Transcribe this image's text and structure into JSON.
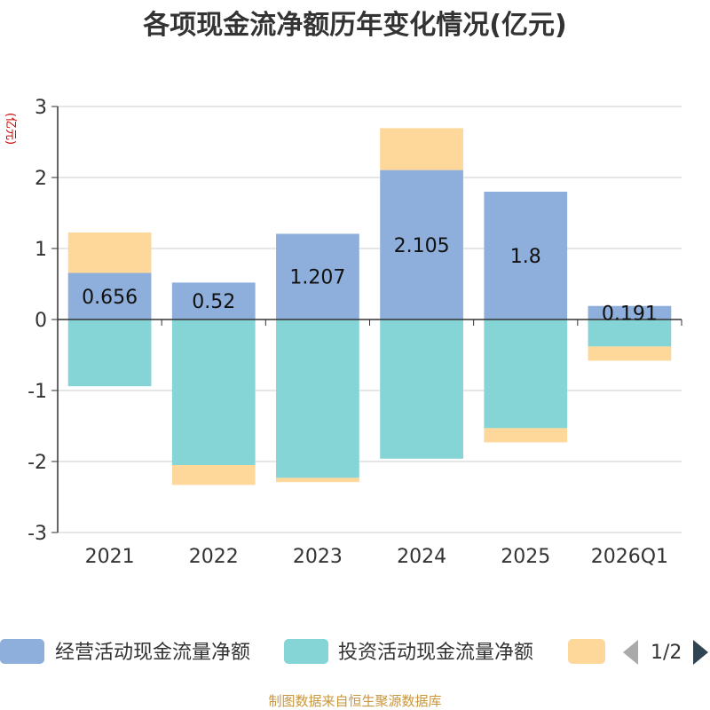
{
  "title": "各项现金流净额历年变化情况(亿元)",
  "unit": "(亿元)",
  "source": "制图数据来自恒生聚源数据库",
  "legend": {
    "items": [
      {
        "label": "经营活动现金流量净额",
        "color": "#8eaedb"
      },
      {
        "label": "投资活动现金流量净额",
        "color": "#85d4d6"
      },
      {
        "label": "",
        "color": "#fdd89a"
      }
    ],
    "page": "1/2"
  },
  "chart_data": {
    "type": "bar",
    "stacked": true,
    "categories": [
      "2021",
      "2022",
      "2023",
      "2024",
      "2025",
      "2026Q1"
    ],
    "series": [
      {
        "name": "经营活动现金流量净额",
        "color": "#8eaedb",
        "values": [
          0.656,
          0.52,
          1.207,
          2.105,
          1.8,
          0.191
        ]
      },
      {
        "name": "投资活动现金流量净额",
        "color": "#85d4d6",
        "values": [
          -0.94,
          -2.05,
          -2.23,
          -1.96,
          -1.53,
          -0.38
        ]
      },
      {
        "name": "",
        "color": "#fdd89a",
        "values": [
          0.57,
          -0.28,
          -0.06,
          0.59,
          -0.2,
          -0.2
        ]
      }
    ],
    "data_labels": [
      "0.656",
      "0.52",
      "1.207",
      "2.105",
      "1.8",
      "0.191"
    ],
    "ylim": [
      -3,
      3
    ],
    "yticks": [
      3,
      2,
      1,
      0,
      -1,
      -2,
      -3
    ],
    "grid": true
  }
}
